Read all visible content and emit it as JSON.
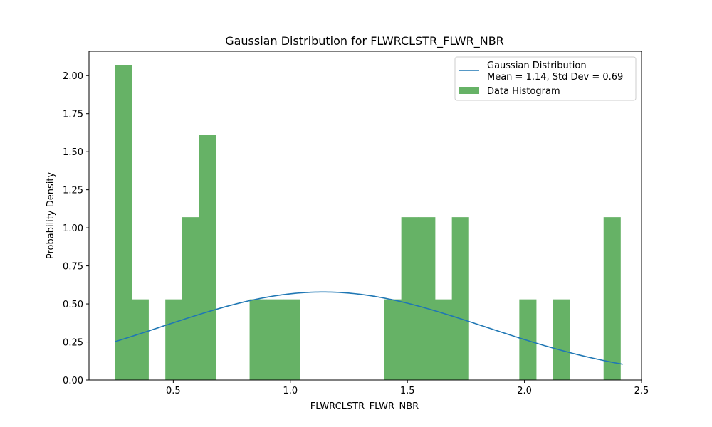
{
  "chart_data": {
    "type": "bar",
    "title": "Gaussian Distribution for FLWRCLSTR_FLWR_NBR",
    "xlabel": "FLWRCLSTR_FLWR_NBR",
    "ylabel": "Probability Density",
    "xlim": [
      0.14,
      2.5
    ],
    "ylim": [
      0,
      2.16
    ],
    "x_ticks": [
      0.5,
      1.0,
      1.5,
      2.0,
      2.5
    ],
    "x_tick_labels": [
      "0.5",
      "1.0",
      "1.5",
      "2.0",
      "2.5"
    ],
    "y_ticks": [
      0,
      0.25,
      0.5,
      0.75,
      1.0,
      1.25,
      1.5,
      1.75,
      2.0
    ],
    "y_tick_labels": [
      "0.00",
      "0.25",
      "0.50",
      "0.75",
      "1.00",
      "1.25",
      "1.50",
      "1.75",
      "2.00"
    ],
    "grid": false,
    "legend_position": "top-right",
    "histogram": {
      "name": "Data Histogram",
      "color": "#66b266",
      "bins": [
        {
          "x0": 0.25,
          "x1": 0.322,
          "value": 2.07
        },
        {
          "x0": 0.322,
          "x1": 0.394,
          "value": 0.53
        },
        {
          "x0": 0.466,
          "x1": 0.538,
          "value": 0.53
        },
        {
          "x0": 0.538,
          "x1": 0.61,
          "value": 1.07
        },
        {
          "x0": 0.61,
          "x1": 0.682,
          "value": 1.61
        },
        {
          "x0": 0.826,
          "x1": 0.898,
          "value": 0.53
        },
        {
          "x0": 0.898,
          "x1": 0.97,
          "value": 0.53
        },
        {
          "x0": 0.97,
          "x1": 1.042,
          "value": 0.53
        },
        {
          "x0": 1.402,
          "x1": 1.474,
          "value": 0.53
        },
        {
          "x0": 1.474,
          "x1": 1.546,
          "value": 1.07
        },
        {
          "x0": 1.546,
          "x1": 1.618,
          "value": 1.07
        },
        {
          "x0": 1.618,
          "x1": 1.69,
          "value": 0.53
        },
        {
          "x0": 1.69,
          "x1": 1.762,
          "value": 1.07
        },
        {
          "x0": 1.978,
          "x1": 2.05,
          "value": 0.53
        },
        {
          "x0": 2.122,
          "x1": 2.194,
          "value": 0.53
        },
        {
          "x0": 2.338,
          "x1": 2.41,
          "value": 1.07
        }
      ]
    },
    "gaussian": {
      "name_line1": "Gaussian Distribution",
      "name_line2": "Mean = 1.14, Std Dev = 0.69",
      "mean": 1.14,
      "std": 0.69,
      "x_range": [
        0.25,
        2.42
      ],
      "color": "#1f77b4"
    }
  }
}
